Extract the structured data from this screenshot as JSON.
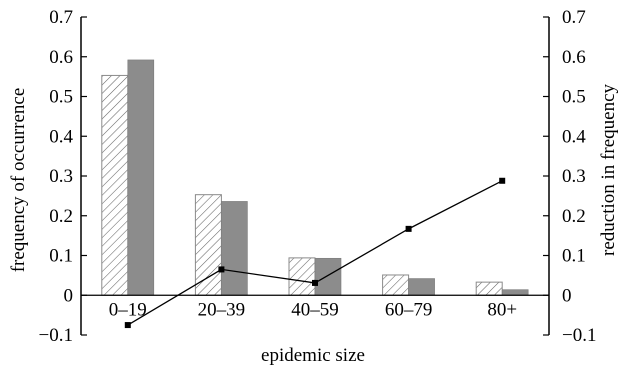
{
  "chart_data": {
    "type": "bar",
    "categories": [
      "0–19",
      "20–39",
      "40–59",
      "60–79",
      "80+"
    ],
    "series": [
      {
        "values": [
          0.553,
          0.253,
          0.094,
          0.051,
          0.033
        ],
        "style": "hatched"
      },
      {
        "values": [
          0.592,
          0.236,
          0.093,
          0.042,
          0.014
        ],
        "style": "solid",
        "color": "#8c8c8c"
      }
    ],
    "line_series": {
      "values": [
        -0.075,
        0.065,
        0.031,
        0.167,
        0.288
      ],
      "axis": "right",
      "color": "#000000"
    },
    "xlabel": "epidemic size",
    "ylabel": "frequency of occurrence",
    "ylabel_right": "reduction in frequency",
    "ylim": [
      -0.1,
      0.7
    ],
    "ylim_right": [
      -0.1,
      0.7
    ],
    "yticks": [
      "−0.1",
      "0",
      "0.1",
      "0.2",
      "0.3",
      "0.4",
      "0.5",
      "0.6",
      "0.7"
    ],
    "yticks_right": [
      "−0.1",
      "0",
      "0.1",
      "0.2",
      "0.3",
      "0.4",
      "0.5",
      "0.6",
      "0.7"
    ],
    "grid": false,
    "legend": "none"
  }
}
